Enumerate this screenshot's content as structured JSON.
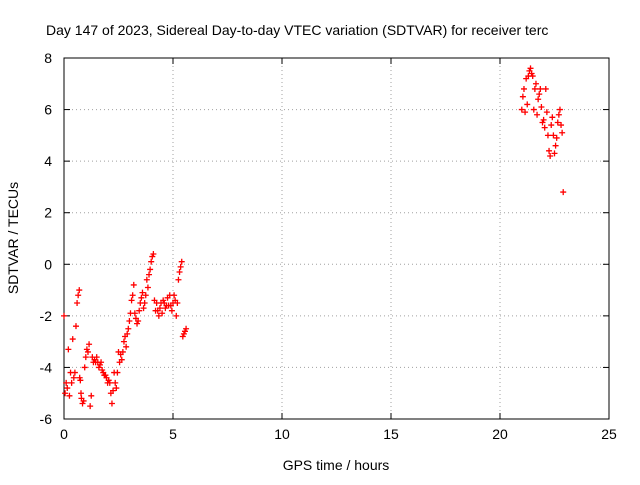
{
  "chart_data": {
    "type": "scatter",
    "title": "Day 147 of 2023, Sidereal Day-to-day VTEC variation (SDTVAR) for receiver terc",
    "xlabel": "GPS time / hours",
    "ylabel": "SDTVAR / TECUs",
    "xlim": [
      0,
      25
    ],
    "ylim": [
      -6,
      8
    ],
    "xticks": [
      0,
      5,
      10,
      15,
      20,
      25
    ],
    "yticks": [
      -6,
      -4,
      -2,
      0,
      2,
      4,
      6,
      8
    ],
    "grid": true,
    "marker": "plus",
    "color": "#ff0000",
    "series": [
      {
        "x": [
          0.0,
          0.05,
          0.1,
          0.15,
          0.2,
          0.25,
          0.3,
          0.35,
          0.4,
          0.45,
          0.5,
          0.55,
          0.6,
          0.65,
          0.7,
          0.72,
          0.75,
          0.78,
          0.8,
          0.85,
          0.9,
          0.95,
          1.0,
          1.05,
          1.1,
          1.15,
          1.2,
          1.25,
          1.3,
          1.35,
          1.4,
          1.45,
          1.5,
          1.55,
          1.6,
          1.65,
          1.7,
          1.75,
          1.8,
          1.85,
          1.9,
          1.95,
          2.0,
          2.05,
          2.1,
          2.15,
          2.2,
          2.25,
          2.3,
          2.35,
          2.4,
          2.45,
          2.5,
          2.55,
          2.6,
          2.65,
          2.7,
          2.75,
          2.8,
          2.85,
          2.9,
          2.95,
          3.0,
          3.05,
          3.1,
          3.15,
          3.2,
          3.25,
          3.3,
          3.35,
          3.4,
          3.45,
          3.5,
          3.55,
          3.6,
          3.65,
          3.7,
          3.75,
          3.8,
          3.85,
          3.9,
          3.95,
          4.0,
          4.05,
          4.1,
          4.15,
          4.2,
          4.25,
          4.3,
          4.35,
          4.4,
          4.45,
          4.5,
          4.55,
          4.6,
          4.65,
          4.7,
          4.75,
          4.8,
          4.85,
          4.9,
          4.95,
          5.0,
          5.05,
          5.1,
          5.15,
          5.2,
          5.25,
          5.3,
          5.35,
          5.4,
          5.45,
          5.5,
          5.55,
          5.6
        ],
        "y": [
          -2.0,
          -5.0,
          -4.6,
          -4.8,
          -3.3,
          -5.1,
          -4.2,
          -4.6,
          -2.9,
          -4.4,
          -4.2,
          -2.4,
          -1.5,
          -1.2,
          -1.0,
          -4.4,
          -4.5,
          -5.0,
          -5.2,
          -5.4,
          -5.3,
          -4.0,
          -3.6,
          -3.3,
          -3.4,
          -3.1,
          -5.5,
          -5.1,
          -3.6,
          -3.8,
          -3.7,
          -3.8,
          -3.6,
          -3.8,
          -4.0,
          -3.9,
          -3.8,
          -4.1,
          -4.2,
          -4.3,
          -4.3,
          -4.4,
          -4.6,
          -4.5,
          -4.6,
          -5.0,
          -5.4,
          -4.9,
          -4.2,
          -4.6,
          -4.8,
          -4.2,
          -3.4,
          -3.8,
          -3.5,
          -3.7,
          -3.4,
          -3.0,
          -2.8,
          -3.2,
          -2.7,
          -2.5,
          -2.2,
          -1.9,
          -1.4,
          -1.2,
          -0.8,
          -1.9,
          -2.1,
          -2.3,
          -2.2,
          -1.8,
          -1.5,
          -1.3,
          -1.1,
          -1.7,
          -1.5,
          -1.2,
          -0.6,
          -0.9,
          -0.4,
          -0.2,
          0.1,
          0.3,
          0.4,
          -1.4,
          -1.8,
          -1.5,
          -1.8,
          -2.0,
          -1.7,
          -1.5,
          -1.9,
          -1.4,
          -1.5,
          -1.7,
          -1.6,
          -1.3,
          -1.6,
          -1.2,
          -1.6,
          -1.8,
          -1.5,
          -1.2,
          -1.4,
          -2.0,
          -1.5,
          -0.6,
          -0.3,
          -0.1,
          0.1,
          -2.8,
          -2.7,
          -2.6,
          -2.5
        ]
      },
      {
        "x": [
          21.0,
          21.05,
          21.1,
          21.15,
          21.2,
          21.25,
          21.3,
          21.35,
          21.4,
          21.45,
          21.5,
          21.55,
          21.6,
          21.65,
          21.7,
          21.75,
          21.8,
          21.85,
          21.9,
          21.95,
          22.0,
          22.05,
          22.1,
          22.15,
          22.2,
          22.25,
          22.3,
          22.35,
          22.4,
          22.45,
          22.5,
          22.55,
          22.6,
          22.65,
          22.7,
          22.75,
          22.8,
          22.85,
          22.9
        ],
        "y": [
          6.0,
          6.5,
          6.8,
          5.9,
          7.2,
          6.2,
          7.3,
          7.5,
          7.6,
          7.4,
          7.3,
          6.0,
          6.8,
          7.0,
          5.8,
          6.4,
          6.6,
          6.8,
          6.1,
          5.5,
          5.6,
          5.3,
          6.8,
          5.9,
          5.0,
          4.4,
          4.2,
          5.4,
          5.7,
          5.0,
          4.3,
          4.6,
          4.9,
          5.5,
          5.8,
          6.0,
          5.4,
          5.1,
          2.8
        ]
      }
    ]
  }
}
